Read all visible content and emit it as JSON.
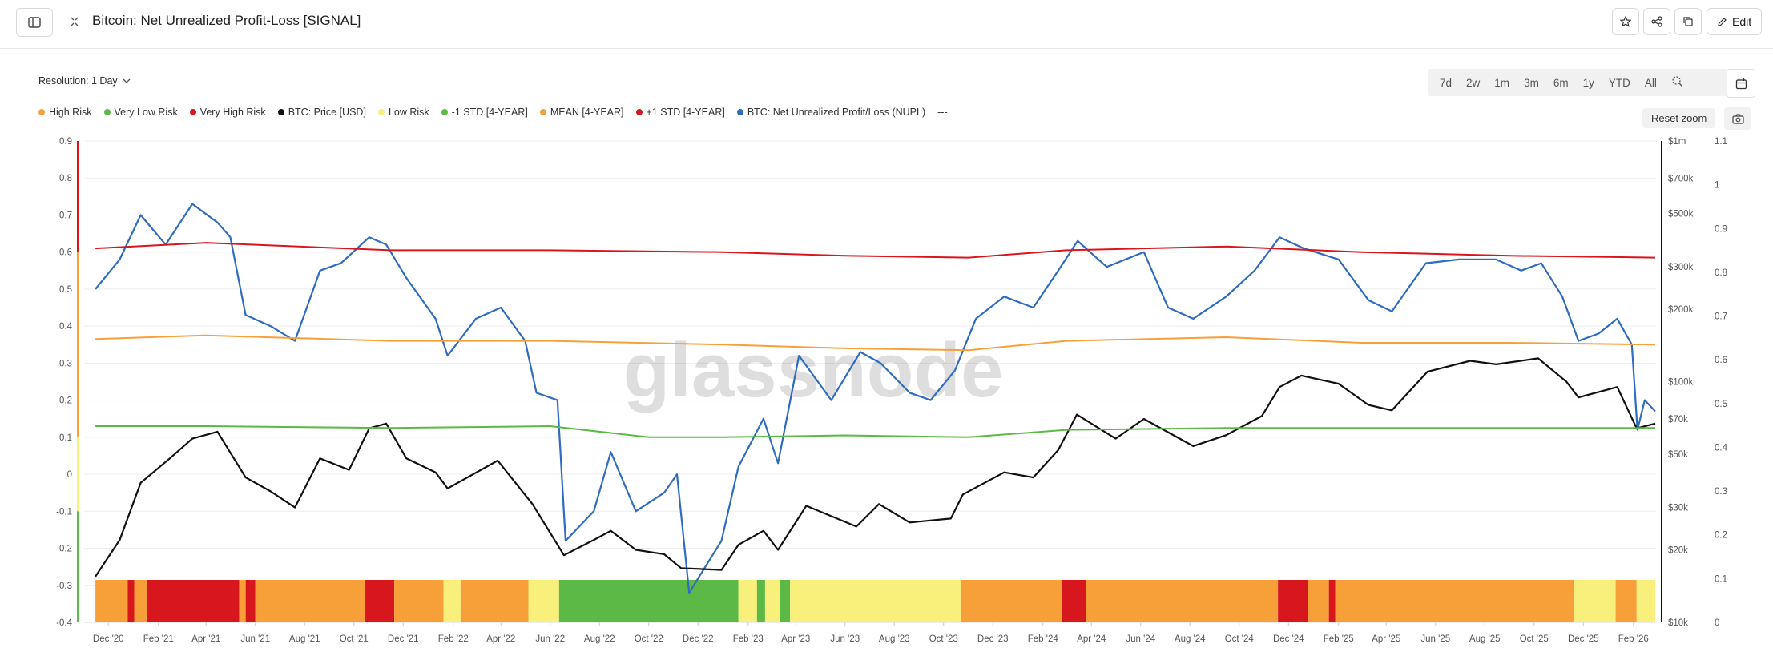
{
  "header": {
    "title": "Bitcoin: Net Unrealized Profit-Loss [SIGNAL]",
    "edit_label": "Edit",
    "icons": [
      "sidebar-icon",
      "collapse-icon",
      "star-icon",
      "share-icon",
      "copy-icon",
      "edit-icon"
    ]
  },
  "controls": {
    "resolution_label": "Resolution: 1 Day",
    "ranges": [
      "7d",
      "2w",
      "1m",
      "3m",
      "6m",
      "1y",
      "YTD",
      "All"
    ],
    "reset_zoom_label": "Reset zoom",
    "legend_more": "---"
  },
  "watermark": "glassnode",
  "chart_data": {
    "type": "line",
    "title": "Bitcoin: Net Unrealized Profit-Loss [SIGNAL]",
    "legend_placement": "top-left",
    "grid": "horizontal",
    "x_labels": [
      "Dec '20",
      "Feb '21",
      "Apr '21",
      "Jun '21",
      "Aug '21",
      "Oct '21",
      "Dec '21",
      "Feb '22",
      "Apr '22",
      "Jun '22",
      "Aug '22",
      "Oct '22",
      "Dec '22",
      "Feb '23",
      "Apr '23",
      "Jun '23",
      "Aug '23",
      "Oct '23",
      "Dec '23",
      "Feb '24",
      "Apr '24",
      "Jun '24",
      "Aug '24",
      "Oct '24",
      "Dec '24",
      "Feb '25",
      "Apr '25",
      "Jun '25",
      "Aug '25",
      "Oct '25",
      "Dec '25",
      "Feb '26"
    ],
    "x_range": [
      "2020-11",
      "2026-03"
    ],
    "y_left": {
      "range": [
        -0.4,
        0.9
      ],
      "ticks": [
        "0.9",
        "0.8",
        "0.7",
        "0.6",
        "0.5",
        "0.4",
        "0.3",
        "0.2",
        "0.1",
        "0",
        "-0.1",
        "-0.2",
        "-0.3",
        "-0.4"
      ]
    },
    "y_price": {
      "scale": "log",
      "range": [
        10000,
        1000000
      ],
      "ticks": [
        {
          "value": 1000000,
          "label": "$1m"
        },
        {
          "value": 700000,
          "label": "$700k"
        },
        {
          "value": 500000,
          "label": "$500k"
        },
        {
          "value": 300000,
          "label": "$300k"
        },
        {
          "value": 200000,
          "label": "$200k"
        },
        {
          "value": 100000,
          "label": "$100k"
        },
        {
          "value": 70000,
          "label": "$70k"
        },
        {
          "value": 50000,
          "label": "$50k"
        },
        {
          "value": 30000,
          "label": "$30k"
        },
        {
          "value": 20000,
          "label": "$20k"
        },
        {
          "value": 10000,
          "label": "$10k"
        }
      ]
    },
    "y_right": {
      "range": [
        0,
        1.1
      ],
      "ticks": [
        "1.1",
        "1",
        "0.9",
        "0.8",
        "0.7",
        "0.6",
        "0.5",
        "0.4",
        "0.3",
        "0.2",
        "0.1",
        "0"
      ]
    },
    "legend": [
      {
        "name": "High Risk",
        "color": "#f7a03a"
      },
      {
        "name": "Very Low Risk",
        "color": "#5cb946"
      },
      {
        "name": "Very High Risk",
        "color": "#d7161d"
      },
      {
        "name": "BTC: Price [USD]",
        "color": "#111111"
      },
      {
        "name": "Low Risk",
        "color": "#f8f07a"
      },
      {
        "name": "-1 STD [4-YEAR]",
        "color": "#5cb946"
      },
      {
        "name": "MEAN [4-YEAR]",
        "color": "#f7a03a"
      },
      {
        "name": "+1 STD [4-YEAR]",
        "color": "#d7161d"
      },
      {
        "name": "BTC: Net Unrealized Profit/Loss (NUPL)",
        "color": "#2f6cc0"
      }
    ],
    "series": [
      {
        "name": "BTC: Net Unrealized Profit/Loss (NUPL)",
        "axis": "left",
        "color": "#2f6cc0",
        "points": [
          [
            "2020-11-15",
            0.5
          ],
          [
            "2020-12-15",
            0.58
          ],
          [
            "2021-01-10",
            0.7
          ],
          [
            "2021-02-10",
            0.62
          ],
          [
            "2021-03-15",
            0.73
          ],
          [
            "2021-04-15",
            0.68
          ],
          [
            "2021-05-01",
            0.64
          ],
          [
            "2021-05-20",
            0.43
          ],
          [
            "2021-06-20",
            0.4
          ],
          [
            "2021-07-20",
            0.36
          ],
          [
            "2021-08-20",
            0.55
          ],
          [
            "2021-09-15",
            0.57
          ],
          [
            "2021-10-20",
            0.64
          ],
          [
            "2021-11-10",
            0.62
          ],
          [
            "2021-12-05",
            0.53
          ],
          [
            "2022-01-10",
            0.42
          ],
          [
            "2022-01-25",
            0.32
          ],
          [
            "2022-03-01",
            0.42
          ],
          [
            "2022-04-01",
            0.45
          ],
          [
            "2022-05-01",
            0.36
          ],
          [
            "2022-05-15",
            0.22
          ],
          [
            "2022-06-10",
            0.2
          ],
          [
            "2022-06-20",
            -0.18
          ],
          [
            "2022-07-25",
            -0.1
          ],
          [
            "2022-08-15",
            0.06
          ],
          [
            "2022-09-15",
            -0.1
          ],
          [
            "2022-10-20",
            -0.05
          ],
          [
            "2022-11-05",
            0.0
          ],
          [
            "2022-11-20",
            -0.32
          ],
          [
            "2022-12-30",
            -0.18
          ],
          [
            "2023-01-20",
            0.02
          ],
          [
            "2023-02-20",
            0.15
          ],
          [
            "2023-03-10",
            0.03
          ],
          [
            "2023-04-05",
            0.32
          ],
          [
            "2023-05-15",
            0.2
          ],
          [
            "2023-06-20",
            0.33
          ],
          [
            "2023-07-15",
            0.3
          ],
          [
            "2023-08-20",
            0.22
          ],
          [
            "2023-09-15",
            0.2
          ],
          [
            "2023-10-15",
            0.28
          ],
          [
            "2023-11-10",
            0.42
          ],
          [
            "2023-12-15",
            0.48
          ],
          [
            "2024-01-20",
            0.45
          ],
          [
            "2024-02-20",
            0.55
          ],
          [
            "2024-03-15",
            0.63
          ],
          [
            "2024-04-20",
            0.56
          ],
          [
            "2024-06-05",
            0.6
          ],
          [
            "2024-07-05",
            0.45
          ],
          [
            "2024-08-05",
            0.42
          ],
          [
            "2024-09-15",
            0.48
          ],
          [
            "2024-10-20",
            0.55
          ],
          [
            "2024-11-20",
            0.64
          ],
          [
            "2024-12-20",
            0.61
          ],
          [
            "2025-02-01",
            0.58
          ],
          [
            "2025-03-10",
            0.47
          ],
          [
            "2025-04-08",
            0.44
          ],
          [
            "2025-05-20",
            0.57
          ],
          [
            "2025-06-30",
            0.58
          ],
          [
            "2025-08-15",
            0.58
          ],
          [
            "2025-09-15",
            0.55
          ],
          [
            "2025-10-10",
            0.57
          ],
          [
            "2025-11-05",
            0.48
          ],
          [
            "2025-11-25",
            0.36
          ],
          [
            "2025-12-20",
            0.38
          ],
          [
            "2026-01-12",
            0.42
          ],
          [
            "2026-01-30",
            0.35
          ],
          [
            "2026-02-06",
            0.12
          ],
          [
            "2026-02-15",
            0.2
          ],
          [
            "2026-02-28",
            0.17
          ]
        ]
      },
      {
        "name": "BTC: Price [USD]",
        "axis": "price",
        "color": "#111111",
        "points": [
          [
            "2020-11-15",
            15500
          ],
          [
            "2020-12-15",
            22000
          ],
          [
            "2021-01-10",
            38000
          ],
          [
            "2021-02-15",
            48000
          ],
          [
            "2021-03-15",
            58000
          ],
          [
            "2021-04-15",
            62000
          ],
          [
            "2021-05-20",
            40000
          ],
          [
            "2021-06-20",
            35000
          ],
          [
            "2021-07-20",
            30000
          ],
          [
            "2021-08-20",
            48000
          ],
          [
            "2021-09-25",
            43000
          ],
          [
            "2021-10-20",
            64000
          ],
          [
            "2021-11-10",
            67000
          ],
          [
            "2021-12-05",
            48000
          ],
          [
            "2022-01-10",
            42000
          ],
          [
            "2022-01-25",
            36000
          ],
          [
            "2022-03-28",
            47000
          ],
          [
            "2022-05-10",
            31000
          ],
          [
            "2022-06-18",
            19000
          ],
          [
            "2022-07-25",
            22000
          ],
          [
            "2022-08-15",
            24000
          ],
          [
            "2022-09-15",
            20000
          ],
          [
            "2022-10-20",
            19200
          ],
          [
            "2022-11-10",
            16800
          ],
          [
            "2022-12-30",
            16500
          ],
          [
            "2023-01-20",
            21000
          ],
          [
            "2023-02-20",
            24000
          ],
          [
            "2023-03-10",
            20000
          ],
          [
            "2023-04-14",
            30500
          ],
          [
            "2023-06-15",
            25000
          ],
          [
            "2023-07-13",
            31000
          ],
          [
            "2023-08-20",
            26000
          ],
          [
            "2023-10-10",
            27000
          ],
          [
            "2023-10-25",
            34000
          ],
          [
            "2023-12-15",
            42000
          ],
          [
            "2024-01-20",
            40000
          ],
          [
            "2024-02-20",
            52000
          ],
          [
            "2024-03-14",
            73000
          ],
          [
            "2024-05-01",
            58000
          ],
          [
            "2024-06-05",
            70000
          ],
          [
            "2024-08-05",
            54000
          ],
          [
            "2024-09-15",
            60000
          ],
          [
            "2024-10-29",
            72000
          ],
          [
            "2024-11-20",
            95000
          ],
          [
            "2024-12-17",
            106000
          ],
          [
            "2025-02-01",
            98000
          ],
          [
            "2025-03-10",
            80000
          ],
          [
            "2025-04-08",
            76000
          ],
          [
            "2025-05-22",
            110000
          ],
          [
            "2025-07-14",
            122000
          ],
          [
            "2025-08-15",
            118000
          ],
          [
            "2025-10-06",
            125000
          ],
          [
            "2025-11-10",
            100000
          ],
          [
            "2025-11-25",
            86000
          ],
          [
            "2026-01-12",
            95000
          ],
          [
            "2026-02-05",
            64000
          ],
          [
            "2026-02-28",
            67000
          ]
        ]
      },
      {
        "name": "+1 STD [4-YEAR]",
        "axis": "left",
        "color": "#d7161d",
        "points": [
          [
            "2020-11-15",
            0.61
          ],
          [
            "2021-04-01",
            0.625
          ],
          [
            "2021-11-15",
            0.605
          ],
          [
            "2022-06-01",
            0.605
          ],
          [
            "2023-01-01",
            0.6
          ],
          [
            "2023-06-01",
            0.59
          ],
          [
            "2023-11-01",
            0.585
          ],
          [
            "2024-03-01",
            0.605
          ],
          [
            "2024-09-15",
            0.615
          ],
          [
            "2025-03-01",
            0.6
          ],
          [
            "2025-09-01",
            0.59
          ],
          [
            "2026-02-28",
            0.585
          ]
        ]
      },
      {
        "name": "MEAN [4-YEAR]",
        "axis": "left",
        "color": "#f7a03a",
        "points": [
          [
            "2020-11-15",
            0.365
          ],
          [
            "2021-04-01",
            0.375
          ],
          [
            "2021-11-15",
            0.36
          ],
          [
            "2022-06-01",
            0.36
          ],
          [
            "2023-01-01",
            0.35
          ],
          [
            "2023-06-01",
            0.34
          ],
          [
            "2023-11-01",
            0.335
          ],
          [
            "2024-03-01",
            0.36
          ],
          [
            "2024-09-15",
            0.37
          ],
          [
            "2025-03-01",
            0.355
          ],
          [
            "2025-09-01",
            0.355
          ],
          [
            "2026-02-28",
            0.35
          ]
        ]
      },
      {
        "name": "-1 STD [4-YEAR]",
        "axis": "left",
        "color": "#5cb946",
        "points": [
          [
            "2020-11-15",
            0.13
          ],
          [
            "2021-04-01",
            0.13
          ],
          [
            "2021-11-15",
            0.125
          ],
          [
            "2022-06-01",
            0.13
          ],
          [
            "2022-10-01",
            0.1
          ],
          [
            "2023-01-01",
            0.1
          ],
          [
            "2023-06-01",
            0.105
          ],
          [
            "2023-11-01",
            0.1
          ],
          [
            "2024-03-01",
            0.12
          ],
          [
            "2024-09-15",
            0.125
          ],
          [
            "2025-03-01",
            0.125
          ],
          [
            "2026-02-28",
            0.125
          ]
        ]
      }
    ],
    "risk_band": {
      "name": "Signal",
      "segments": [
        [
          "2020-11-15",
          "2020-12-25",
          "High Risk"
        ],
        [
          "2020-12-25",
          "2021-01-02",
          "Very High Risk"
        ],
        [
          "2021-01-02",
          "2021-01-18",
          "High Risk"
        ],
        [
          "2021-01-18",
          "2021-05-12",
          "Very High Risk"
        ],
        [
          "2021-05-12",
          "2021-05-20",
          "High Risk"
        ],
        [
          "2021-05-20",
          "2021-06-01",
          "Very High Risk"
        ],
        [
          "2021-06-01",
          "2021-10-15",
          "High Risk"
        ],
        [
          "2021-10-15",
          "2021-11-20",
          "Very High Risk"
        ],
        [
          "2021-11-20",
          "2022-01-20",
          "High Risk"
        ],
        [
          "2022-01-20",
          "2022-02-10",
          "Low Risk"
        ],
        [
          "2022-02-10",
          "2022-05-05",
          "High Risk"
        ],
        [
          "2022-05-05",
          "2022-06-12",
          "Low Risk"
        ],
        [
          "2022-06-12",
          "2023-01-20",
          "Very Low Risk"
        ],
        [
          "2023-01-20",
          "2023-02-12",
          "Low Risk"
        ],
        [
          "2023-02-12",
          "2023-02-22",
          "Very Low Risk"
        ],
        [
          "2023-02-22",
          "2023-03-12",
          "Low Risk"
        ],
        [
          "2023-03-12",
          "2023-03-25",
          "Very Low Risk"
        ],
        [
          "2023-03-25",
          "2023-10-22",
          "Low Risk"
        ],
        [
          "2023-10-22",
          "2024-02-25",
          "High Risk"
        ],
        [
          "2024-02-25",
          "2024-03-25",
          "Very High Risk"
        ],
        [
          "2024-03-25",
          "2024-11-18",
          "High Risk"
        ],
        [
          "2024-11-18",
          "2024-12-25",
          "Very High Risk"
        ],
        [
          "2024-12-25",
          "2025-01-20",
          "High Risk"
        ],
        [
          "2025-01-20",
          "2025-01-28",
          "Very High Risk"
        ],
        [
          "2025-01-28",
          "2025-11-20",
          "High Risk"
        ],
        [
          "2025-11-20",
          "2026-01-10",
          "Low Risk"
        ],
        [
          "2026-01-10",
          "2026-02-05",
          "High Risk"
        ],
        [
          "2026-02-05",
          "2026-02-28",
          "Low Risk"
        ]
      ]
    }
  }
}
